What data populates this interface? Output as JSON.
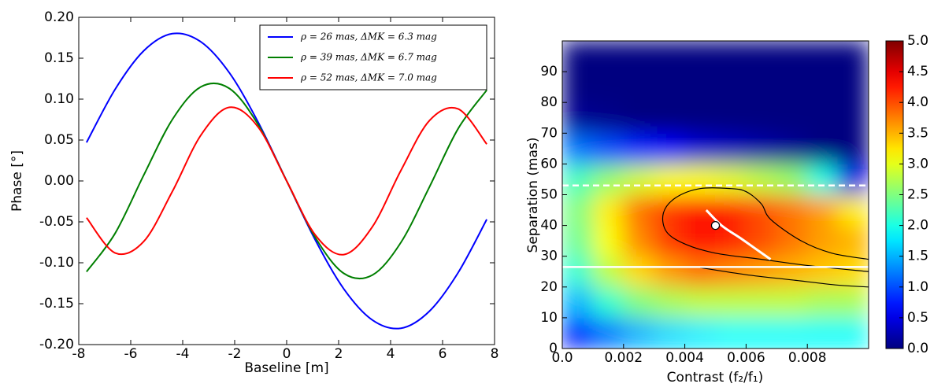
{
  "chart_data": [
    {
      "type": "line",
      "xlabel": "Baseline [m]",
      "ylabel": "Phase [°]",
      "x": [
        -7.7,
        -6.6,
        -5.5,
        -4.4,
        -3.3,
        -2.2,
        -1.1,
        0,
        1.1,
        2.2,
        3.3,
        4.4,
        5.5,
        6.6,
        7.7
      ],
      "series": [
        {
          "name": "ρ = 26 mas, ΔMK = 6.3 mag",
          "color": "#0000ff",
          "values": [
            0.047,
            0.112,
            0.159,
            0.18,
            0.17,
            0.132,
            0.072,
            0,
            -0.072,
            -0.132,
            -0.17,
            -0.18,
            -0.159,
            -0.112,
            -0.047
          ]
        },
        {
          "name": "ρ = 39 mas, ΔMK = 6.7 mag",
          "color": "#007f00",
          "values": [
            -0.111,
            -0.064,
            0.007,
            0.075,
            0.115,
            0.113,
            0.069,
            0,
            -0.069,
            -0.113,
            -0.115,
            -0.075,
            -0.007,
            0.064,
            0.111
          ]
        },
        {
          "name": "ρ = 52 mas, ΔMK = 7.0 mag",
          "color": "#ff0000",
          "values": [
            -0.045,
            -0.088,
            -0.074,
            -0.013,
            0.056,
            0.09,
            0.066,
            0,
            -0.066,
            -0.09,
            -0.056,
            0.013,
            0.074,
            0.088,
            0.045
          ]
        }
      ],
      "xlim": [
        -8,
        8
      ],
      "xticks": [
        -8,
        -6,
        -4,
        -2,
        0,
        2,
        4,
        6,
        8
      ],
      "ylim": [
        -0.2,
        0.2
      ],
      "yticks": [
        {
          "value": -0.2,
          "label": "-0.20"
        },
        -0.15,
        {
          "value": -0.1,
          "label": "-0.10"
        },
        -0.05,
        {
          "value": 0,
          "label": "0.00"
        },
        0.05,
        {
          "value": 0.1,
          "label": "0.10"
        },
        0.15,
        {
          "value": 0.2,
          "label": "0.20"
        }
      ],
      "legend": "upper right"
    },
    {
      "type": "heatmap",
      "xlabel": "Contrast (f₂/f₁)",
      "ylabel": "Separation (mas)",
      "x": [
        0.0005,
        0.0015,
        0.0025,
        0.0035,
        0.0045,
        0.0055,
        0.0065,
        0.0075,
        0.0085,
        0.0095
      ],
      "y": [
        5,
        15,
        25,
        35,
        45,
        55,
        65,
        75,
        85,
        95
      ],
      "values": [
        [
          0.8,
          1.2,
          1.5,
          1.7,
          1.8,
          1.9,
          1.9,
          1.9,
          1.9,
          1.9
        ],
        [
          1.5,
          2.1,
          2.5,
          2.7,
          2.8,
          2.8,
          2.8,
          2.8,
          2.7,
          2.7
        ],
        [
          2.1,
          2.8,
          3.3,
          3.6,
          3.8,
          3.7,
          3.6,
          3.5,
          3.4,
          3.3
        ],
        [
          2.4,
          3.1,
          3.7,
          4.1,
          4.3,
          4.2,
          4.0,
          3.8,
          3.6,
          3.5
        ],
        [
          2.5,
          3.2,
          3.8,
          4.1,
          4.3,
          4.2,
          4.0,
          3.8,
          3.6,
          3.2
        ],
        [
          2.2,
          2.6,
          2.9,
          3.1,
          3.1,
          3.0,
          2.8,
          2.6,
          2.0,
          0.5
        ],
        [
          1.2,
          1.0,
          0.8,
          0.6,
          0.4,
          0.3,
          0.2,
          0.1,
          0,
          0
        ],
        [
          0.1,
          0.05,
          0,
          0,
          0,
          0,
          0,
          0,
          0,
          0
        ],
        [
          0,
          0,
          0,
          0,
          0,
          0,
          0,
          0,
          0,
          0
        ],
        [
          0,
          0,
          0,
          0,
          0,
          0,
          0,
          0,
          0,
          0
        ]
      ],
      "xlim": [
        0,
        0.01
      ],
      "xticks": [
        {
          "value": 0,
          "label": "0.0"
        },
        0.002,
        0.004,
        0.006,
        0.008
      ],
      "ylim": [
        0,
        100
      ],
      "yticks": [
        0,
        10,
        20,
        30,
        40,
        50,
        60,
        70,
        80,
        90
      ],
      "colormap": "jet",
      "colorbar": {
        "lim": [
          0,
          5
        ],
        "ticks": [
          {
            "value": 0,
            "label": "0.0"
          },
          0.5,
          {
            "value": 1,
            "label": "1.0"
          },
          1.5,
          {
            "value": 2,
            "label": "2.0"
          },
          2.5,
          {
            "value": 3,
            "label": "3.0"
          },
          3.5,
          {
            "value": 4,
            "label": "4.0"
          },
          4.5,
          {
            "value": 5,
            "label": "5.0"
          }
        ]
      },
      "hlines": [
        {
          "y": 53,
          "style": "dashed",
          "color": "#ffffff"
        },
        {
          "y": 26.5,
          "style": "solid",
          "color": "#ffffff"
        }
      ],
      "track": {
        "x": [
          0.0047,
          0.0052,
          0.0058,
          0.0063,
          0.0068
        ],
        "y": [
          45,
          40,
          36,
          32.5,
          29
        ],
        "color": "#ffffff"
      },
      "best_fit": {
        "x": 0.005,
        "y": 40
      },
      "contours": [
        {
          "x": [
            0.01,
            0.0088,
            0.0078,
            0.0068,
            0.0065,
            0.006,
            0.0055,
            0.0045,
            0.0037,
            0.0033,
            0.0034,
            0.004,
            0.005,
            0.0065,
            0.008,
            0.01
          ],
          "y": [
            29,
            31,
            35,
            42,
            47,
            51,
            52,
            52,
            49,
            44,
            38,
            34,
            31,
            29,
            27,
            25
          ]
        },
        {
          "x": [
            0.0045,
            0.006,
            0.0075,
            0.009,
            0.01
          ],
          "y": [
            26.3,
            24,
            22.3,
            20.6,
            20
          ]
        }
      ]
    }
  ]
}
